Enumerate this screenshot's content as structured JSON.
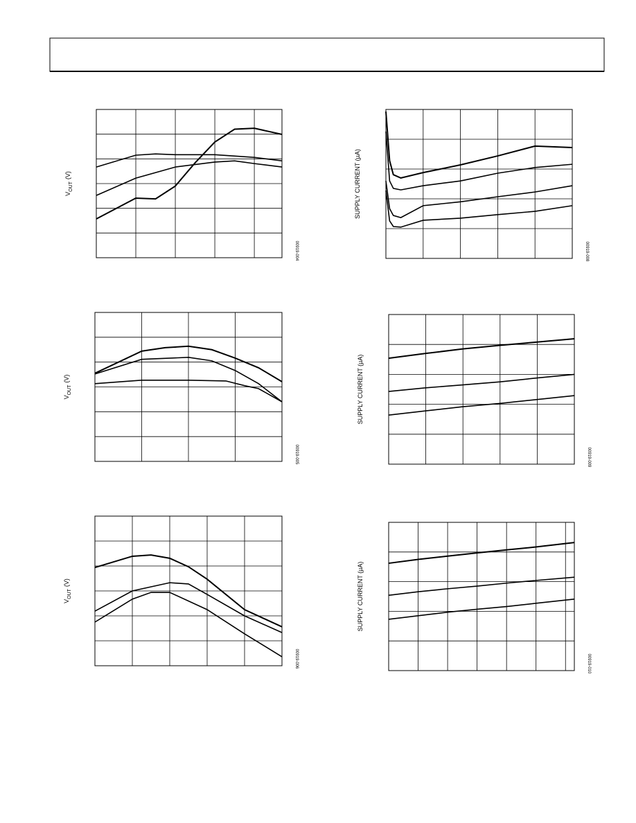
{
  "chart_data": [
    {
      "type": "line",
      "ylabel": {
        "main": "V",
        "sub": "OUT",
        "unit": "(V)"
      },
      "code": "00919-004",
      "xlim": [
        0,
        4.7
      ],
      "ylim": [
        0,
        6
      ],
      "grid": true,
      "color": "#000",
      "series": [
        {
          "x": [
            0,
            1,
            1.5,
            2,
            2.5,
            3,
            3.5,
            4,
            4.7
          ],
          "values": [
            1.57,
            2.41,
            2.38,
            2.9,
            3.84,
            4.68,
            5.2,
            5.24,
            4.99
          ]
        },
        {
          "x": [
            0,
            1,
            1.5,
            2,
            3,
            4,
            4.7
          ],
          "values": [
            3.67,
            4.15,
            4.2,
            4.17,
            4.17,
            4.06,
            3.92
          ]
        },
        {
          "x": [
            0,
            1,
            2,
            3,
            3.5,
            4,
            4.7
          ],
          "values": [
            2.52,
            3.22,
            3.67,
            3.87,
            3.92,
            3.81,
            3.67
          ]
        }
      ]
    },
    {
      "type": "line",
      "ylabel": {
        "main": "V",
        "sub": "OUT",
        "unit": "(V)"
      },
      "code": "00919-005",
      "xlim": [
        0,
        4
      ],
      "ylim": [
        0,
        6
      ],
      "grid": true,
      "color": "#000",
      "series": [
        {
          "x": [
            0,
            1,
            1.5,
            2,
            2.5,
            3,
            3.5,
            4
          ],
          "values": [
            3.55,
            4.44,
            4.58,
            4.64,
            4.5,
            4.16,
            3.77,
            3.21
          ]
        },
        {
          "x": [
            0,
            1,
            2,
            2.5,
            3,
            3.5,
            4
          ],
          "values": [
            3.52,
            4.11,
            4.19,
            4.05,
            3.66,
            3.13,
            2.4
          ]
        },
        {
          "x": [
            0,
            1,
            2,
            2.8,
            3.2,
            3.5,
            4
          ],
          "values": [
            3.13,
            3.27,
            3.27,
            3.24,
            3.05,
            2.93,
            2.4
          ]
        }
      ]
    },
    {
      "type": "line",
      "ylabel": {
        "main": "V",
        "sub": "OUT",
        "unit": "(V)"
      },
      "code": "00919-006",
      "xlim": [
        0,
        5
      ],
      "ylim": [
        0,
        6
      ],
      "grid": true,
      "color": "#000",
      "series": [
        {
          "x": [
            0,
            1,
            1.5,
            2,
            2.5,
            3,
            4,
            5
          ],
          "values": [
            3.94,
            4.39,
            4.44,
            4.31,
            3.97,
            3.47,
            2.25,
            1.56
          ]
        },
        {
          "x": [
            0,
            1,
            2,
            2.5,
            3,
            4,
            5
          ],
          "values": [
            2.19,
            3,
            3.33,
            3.28,
            2.86,
            2,
            1.33
          ]
        },
        {
          "x": [
            0,
            1,
            1.5,
            2,
            3,
            4,
            5
          ],
          "values": [
            1.75,
            2.67,
            2.94,
            2.94,
            2.25,
            1.28,
            0.36
          ]
        }
      ]
    },
    {
      "type": "line",
      "ylabel": {
        "main": "SUPPLY CURRENT (µA)"
      },
      "code": "00919-008",
      "xlim": [
        0,
        5
      ],
      "ylim": [
        0,
        5
      ],
      "grid": true,
      "color": "#000",
      "series": [
        {
          "x": [
            0,
            0.1,
            0.2,
            0.4,
            1,
            2,
            3,
            4,
            5
          ],
          "values": [
            4.93,
            3.28,
            2.81,
            2.7,
            2.88,
            3.14,
            3.44,
            3.77,
            3.72
          ]
        },
        {
          "x": [
            0,
            0.1,
            0.2,
            0.4,
            1,
            2,
            3,
            4,
            5
          ],
          "values": [
            4.26,
            2.6,
            2.35,
            2.3,
            2.44,
            2.6,
            2.86,
            3.05,
            3.16
          ]
        },
        {
          "x": [
            0,
            0.1,
            0.2,
            0.4,
            1,
            2,
            3,
            4,
            5
          ],
          "values": [
            2.6,
            1.67,
            1.44,
            1.37,
            1.77,
            1.9,
            2.07,
            2.23,
            2.44
          ]
        },
        {
          "x": [
            0,
            0.1,
            0.2,
            0.4,
            1,
            2,
            3,
            4,
            5
          ],
          "values": [
            2.28,
            1.26,
            1.07,
            1.05,
            1.28,
            1.35,
            1.47,
            1.58,
            1.77
          ]
        }
      ]
    },
    {
      "type": "line",
      "ylabel": {
        "main": "SUPPLY CURRENT (µA)"
      },
      "code": "00919-009",
      "xlim": [
        0,
        5
      ],
      "ylim": [
        0,
        5
      ],
      "grid": true,
      "color": "#000",
      "series": [
        {
          "x": [
            0,
            1,
            2,
            3,
            4,
            5
          ],
          "values": [
            3.54,
            3.7,
            3.85,
            3.97,
            4.08,
            4.19
          ]
        },
        {
          "x": [
            0,
            1,
            2,
            3,
            4,
            5
          ],
          "values": [
            2.43,
            2.55,
            2.65,
            2.75,
            2.88,
            3
          ]
        },
        {
          "x": [
            0,
            1,
            2,
            3,
            4,
            5
          ],
          "values": [
            1.64,
            1.78,
            1.92,
            2.03,
            2.16,
            2.29
          ]
        }
      ]
    },
    {
      "type": "line",
      "ylabel": {
        "main": "SUPPLY CURRENT (µA)"
      },
      "code": "00919-010",
      "xlim": [
        0,
        6.3
      ],
      "ylim": [
        0,
        5
      ],
      "grid": true,
      "color": "#000",
      "series": [
        {
          "x": [
            0,
            1,
            2,
            3,
            4,
            5,
            6.3
          ],
          "values": [
            3.62,
            3.75,
            3.86,
            3.97,
            4.07,
            4.17,
            4.32
          ]
        },
        {
          "x": [
            0,
            1,
            2,
            3,
            4,
            5,
            6.3
          ],
          "values": [
            2.54,
            2.66,
            2.76,
            2.85,
            2.95,
            3.04,
            3.15
          ]
        },
        {
          "x": [
            0,
            1,
            2,
            3,
            4,
            5,
            6.3
          ],
          "values": [
            1.73,
            1.85,
            1.97,
            2.07,
            2.16,
            2.27,
            2.41
          ]
        }
      ]
    }
  ]
}
